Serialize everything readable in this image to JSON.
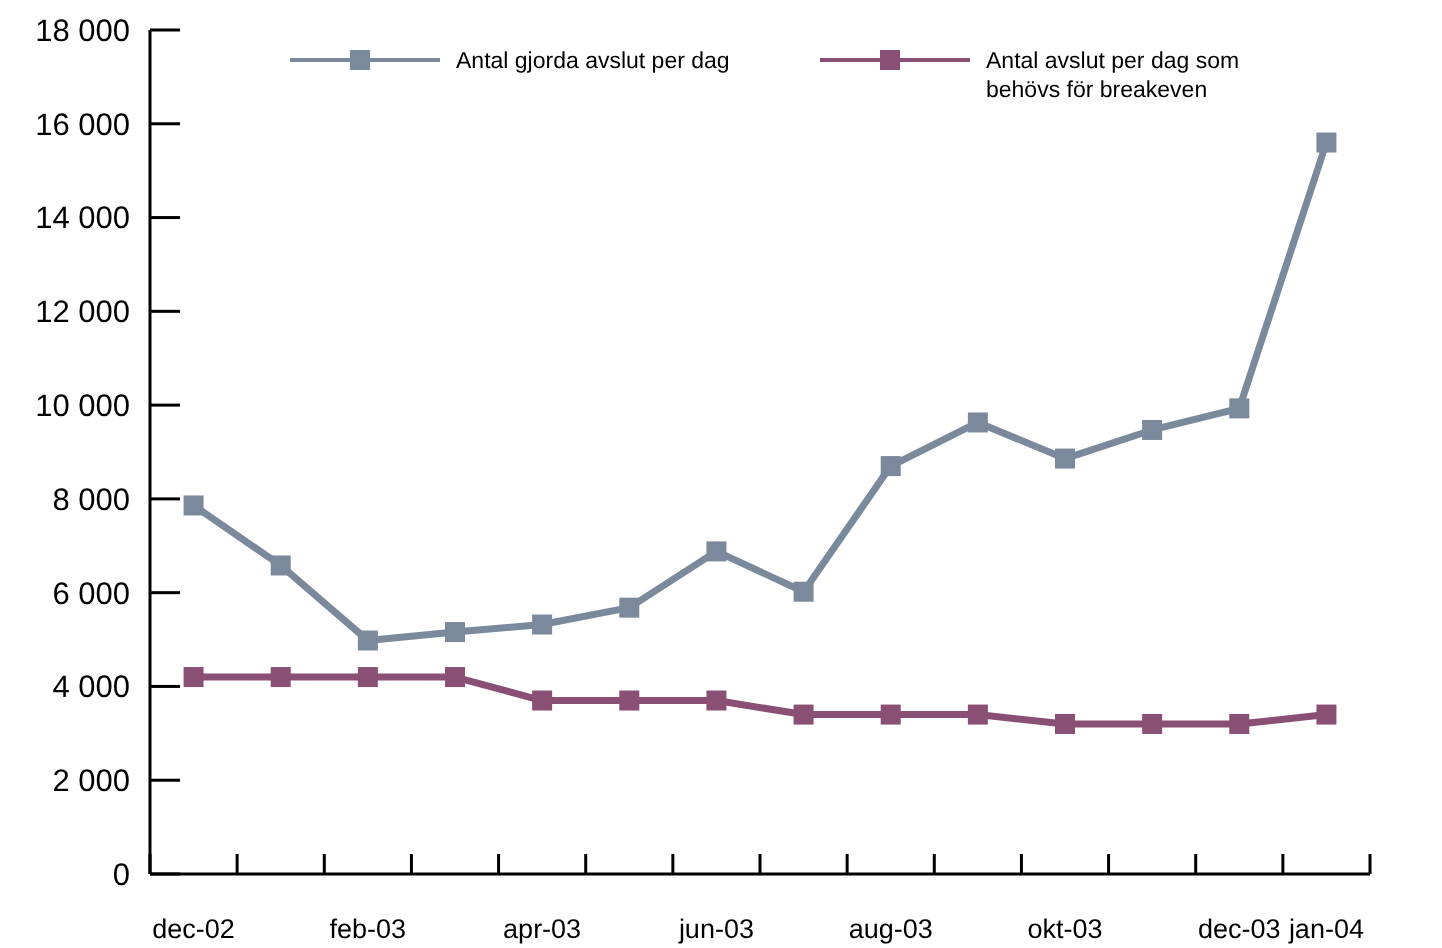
{
  "chart_data": {
    "type": "line",
    "categories": [
      "dec-02",
      null,
      "feb-03",
      null,
      "apr-03",
      null,
      "jun-03",
      null,
      "aug-03",
      null,
      "okt-03",
      null,
      "dec-03",
      "jan-04"
    ],
    "series": [
      {
        "name": "Antal gjorda avslut per dag",
        "color": "#7a8a9c",
        "values": [
          7860,
          6580,
          4980,
          5160,
          5320,
          5680,
          6880,
          6020,
          8700,
          9630,
          8860,
          9470,
          9930,
          15600
        ]
      },
      {
        "name": "Antal avslut per dag som behövs för breakeven",
        "color": "#8a4f74",
        "values": [
          4200,
          4200,
          4200,
          4200,
          3700,
          3700,
          3700,
          3400,
          3400,
          3400,
          3200,
          3200,
          3200,
          3400
        ]
      }
    ],
    "ylim": [
      0,
      18000
    ],
    "yticks": [
      0,
      {
        "value": 2000,
        "label": "2 000"
      },
      {
        "value": 4000,
        "label": "4 000"
      },
      {
        "value": 6000,
        "label": "6 000"
      },
      {
        "value": 8000,
        "label": "8 000"
      },
      {
        "value": 10000,
        "label": "10 000"
      },
      {
        "value": 12000,
        "label": "12 000"
      },
      {
        "value": 14000,
        "label": "14 000"
      },
      {
        "value": 16000,
        "label": "16 000"
      },
      {
        "value": 18000,
        "label": "18 000"
      }
    ],
    "grid": false,
    "legend": "top",
    "marker": "square",
    "line_style": "solid"
  }
}
